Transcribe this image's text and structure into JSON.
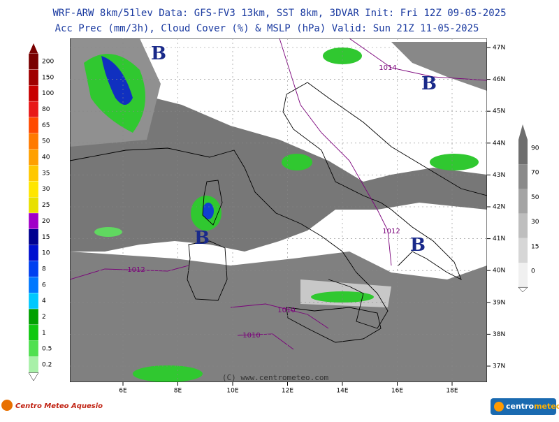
{
  "header": {
    "line1": "WRF-ARW 8km/51lev  Data: GFS-FV3 13km, SST 8km, 3DVAR  Init: Fri 12Z 09-05-2025",
    "line2": "Acc Prec (mm/3h), Cloud Cover (%) & MSLP (hPa)  Valid: Sun 21Z 11-05-2025"
  },
  "precip_scale": {
    "labels": [
      "200",
      "150",
      "100",
      "80",
      "65",
      "50",
      "40",
      "35",
      "30",
      "25",
      "20",
      "15",
      "10",
      "8",
      "6",
      "4",
      "2",
      "1",
      "0.5",
      "0.2"
    ],
    "colors": [
      "#7a0000",
      "#a00000",
      "#c80000",
      "#e81818",
      "#ff4a00",
      "#ff7a00",
      "#ffa000",
      "#ffc800",
      "#ffe600",
      "#e8e000",
      "#a000c8",
      "#000090",
      "#0010d0",
      "#0040f0",
      "#0078ff",
      "#00c8ff",
      "#00a000",
      "#10c810",
      "#50e050",
      "#a8f0a8"
    ]
  },
  "cloud_scale": {
    "labels": [
      "90",
      "70",
      "50",
      "30",
      "15",
      "0"
    ],
    "colors": [
      "#6e6e6e",
      "#8a8a8a",
      "#a4a4a4",
      "#bebebe",
      "#d6d6d6",
      "#f0f0f0"
    ]
  },
  "map": {
    "lat_labels": [
      "47N",
      "46N",
      "45N",
      "44N",
      "43N",
      "42N",
      "41N",
      "40N",
      "39N",
      "38N",
      "37N"
    ],
    "lon_labels": [
      "6E",
      "8E",
      "10E",
      "12E",
      "14E",
      "16E",
      "18E"
    ],
    "isobar_labels": [
      "1014",
      "1012",
      "1012",
      "1010",
      "1010"
    ],
    "low_markers": [
      "B",
      "B",
      "B",
      "B"
    ],
    "copyright": "(C) www.centrometeo.com"
  },
  "footer": {
    "left_logo": "Centro Meteo Aquesio",
    "right_logo_a": "centro",
    "right_logo_b": "meteo"
  }
}
